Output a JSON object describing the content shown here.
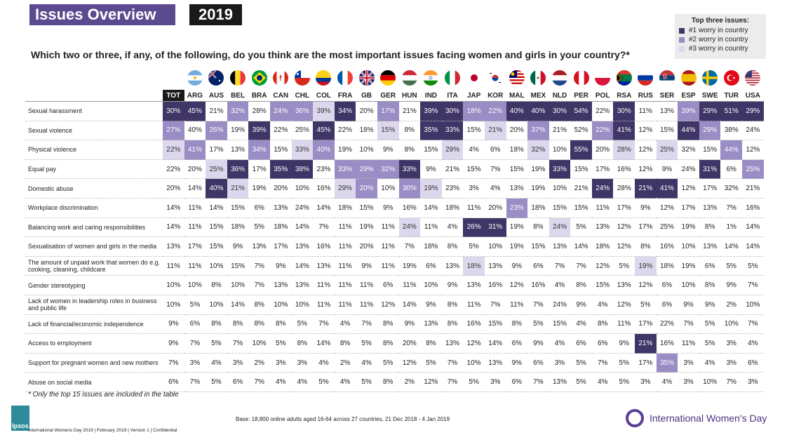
{
  "header": {
    "title": "Issues Overview",
    "year": "2019"
  },
  "legend": {
    "title": "Top three issues:",
    "items": [
      {
        "label": "#1 worry in country",
        "color": "#3f3566"
      },
      {
        "label": "#2 worry in country",
        "color": "#9a8cc4"
      },
      {
        "label": "#3 worry in country",
        "color": "#dcd7ec"
      }
    ]
  },
  "question": "Which two or three, if any, of the following, do you think are the most important issues facing women and girls in your country?*",
  "columns": [
    "TOT",
    "ARG",
    "AUS",
    "BEL",
    "BRA",
    "CAN",
    "CHL",
    "COL",
    "FRA",
    "GB",
    "GER",
    "HUN",
    "IND",
    "ITA",
    "JAP",
    "KOR",
    "MAL",
    "MEX",
    "NLD",
    "PER",
    "POL",
    "RSA",
    "RUS",
    "SER",
    "ESP",
    "SWE",
    "TUR",
    "USA"
  ],
  "rows": [
    {
      "label": "Sexual harassment",
      "values": [
        "30%",
        "45%",
        "21%",
        "32%",
        "28%",
        "24%",
        "36%",
        "39%",
        "34%",
        "20%",
        "17%",
        "21%",
        "39%",
        "30%",
        "18%",
        "22%",
        "40%",
        "40%",
        "30%",
        "54%",
        "22%",
        "30%",
        "11%",
        "13%",
        "39%",
        "29%",
        "51%",
        "29%"
      ],
      "ranks": [
        1,
        1,
        0,
        2,
        0,
        2,
        2,
        3,
        1,
        0,
        2,
        0,
        1,
        1,
        2,
        2,
        1,
        1,
        1,
        1,
        0,
        1,
        0,
        0,
        2,
        1,
        1,
        1
      ]
    },
    {
      "label": "Sexual violence",
      "values": [
        "27%",
        "40%",
        "26%",
        "19%",
        "39%",
        "22%",
        "25%",
        "45%",
        "22%",
        "18%",
        "15%",
        "8%",
        "35%",
        "33%",
        "15%",
        "21%",
        "20%",
        "37%",
        "21%",
        "52%",
        "22%",
        "41%",
        "12%",
        "15%",
        "44%",
        "29%",
        "38%",
        "24%"
      ],
      "ranks": [
        2,
        0,
        2,
        0,
        1,
        0,
        0,
        1,
        0,
        0,
        3,
        0,
        1,
        1,
        0,
        3,
        0,
        2,
        0,
        0,
        2,
        1,
        0,
        0,
        1,
        2,
        0,
        0
      ]
    },
    {
      "label": "Physical violence",
      "values": [
        "22%",
        "41%",
        "17%",
        "13%",
        "34%",
        "15%",
        "33%",
        "40%",
        "19%",
        "10%",
        "9%",
        "8%",
        "15%",
        "29%",
        "4%",
        "6%",
        "18%",
        "32%",
        "10%",
        "55%",
        "20%",
        "28%",
        "12%",
        "25%",
        "32%",
        "15%",
        "44%",
        "12%"
      ],
      "ranks": [
        3,
        2,
        0,
        0,
        2,
        0,
        3,
        2,
        0,
        0,
        0,
        0,
        0,
        3,
        0,
        0,
        0,
        3,
        0,
        1,
        0,
        3,
        0,
        3,
        0,
        0,
        2,
        0
      ]
    },
    {
      "label": "Equal pay",
      "values": [
        "22%",
        "20%",
        "25%",
        "36%",
        "17%",
        "35%",
        "38%",
        "23%",
        "33%",
        "29%",
        "32%",
        "33%",
        "9%",
        "21%",
        "15%",
        "7%",
        "15%",
        "19%",
        "33%",
        "15%",
        "17%",
        "16%",
        "12%",
        "9%",
        "24%",
        "31%",
        "6%",
        "25%"
      ],
      "ranks": [
        0,
        0,
        3,
        1,
        0,
        1,
        1,
        0,
        2,
        2,
        2,
        1,
        0,
        0,
        0,
        0,
        0,
        0,
        1,
        0,
        0,
        0,
        0,
        0,
        0,
        1,
        0,
        2
      ]
    },
    {
      "label": "Domestic abuse",
      "values": [
        "20%",
        "14%",
        "40%",
        "21%",
        "19%",
        "20%",
        "10%",
        "16%",
        "29%",
        "20%",
        "10%",
        "30%",
        "19%",
        "23%",
        "3%",
        "4%",
        "13%",
        "19%",
        "10%",
        "21%",
        "24%",
        "28%",
        "21%",
        "41%",
        "12%",
        "17%",
        "32%",
        "21%"
      ],
      "ranks": [
        0,
        0,
        1,
        3,
        0,
        0,
        0,
        0,
        3,
        2,
        0,
        2,
        3,
        0,
        0,
        0,
        0,
        0,
        0,
        0,
        1,
        0,
        1,
        1,
        0,
        0,
        0,
        0
      ]
    },
    {
      "label": "Workplace discrimination",
      "values": [
        "14%",
        "11%",
        "14%",
        "15%",
        "6%",
        "13%",
        "24%",
        "14%",
        "18%",
        "15%",
        "9%",
        "16%",
        "14%",
        "18%",
        "11%",
        "20%",
        "23%",
        "18%",
        "15%",
        "15%",
        "11%",
        "17%",
        "9%",
        "12%",
        "17%",
        "13%",
        "7%",
        "16%"
      ],
      "ranks": [
        0,
        0,
        0,
        0,
        0,
        0,
        0,
        0,
        0,
        0,
        0,
        0,
        0,
        0,
        0,
        0,
        2,
        0,
        0,
        0,
        0,
        0,
        0,
        0,
        0,
        0,
        0,
        0
      ]
    },
    {
      "label": "Balancing work and caring responsibilities",
      "values": [
        "14%",
        "11%",
        "15%",
        "18%",
        "5%",
        "18%",
        "14%",
        "7%",
        "11%",
        "19%",
        "11%",
        "24%",
        "11%",
        "4%",
        "26%",
        "31%",
        "19%",
        "8%",
        "24%",
        "5%",
        "13%",
        "12%",
        "17%",
        "25%",
        "19%",
        "8%",
        "1%",
        "14%"
      ],
      "ranks": [
        0,
        0,
        0,
        0,
        0,
        0,
        0,
        0,
        0,
        0,
        0,
        3,
        0,
        0,
        1,
        1,
        0,
        0,
        3,
        0,
        0,
        0,
        0,
        0,
        0,
        0,
        0,
        0
      ]
    },
    {
      "label": "Sexualisation of women and girls in the media",
      "values": [
        "13%",
        "17%",
        "15%",
        "9%",
        "13%",
        "17%",
        "13%",
        "16%",
        "11%",
        "20%",
        "11%",
        "7%",
        "18%",
        "8%",
        "5%",
        "10%",
        "19%",
        "15%",
        "13%",
        "14%",
        "18%",
        "12%",
        "8%",
        "16%",
        "10%",
        "13%",
        "14%",
        "14%"
      ],
      "ranks": [
        0,
        0,
        0,
        0,
        0,
        0,
        0,
        0,
        0,
        0,
        0,
        0,
        0,
        0,
        0,
        0,
        0,
        0,
        0,
        0,
        0,
        0,
        0,
        0,
        0,
        0,
        0,
        0
      ]
    },
    {
      "label": "The amount of unpaid work that women do e.g. cooking, cleaning, childcare",
      "values": [
        "11%",
        "11%",
        "10%",
        "15%",
        "7%",
        "9%",
        "14%",
        "13%",
        "11%",
        "9%",
        "11%",
        "19%",
        "6%",
        "13%",
        "18%",
        "13%",
        "9%",
        "6%",
        "7%",
        "7%",
        "12%",
        "5%",
        "19%",
        "18%",
        "19%",
        "6%",
        "5%",
        "5%"
      ],
      "ranks": [
        0,
        0,
        0,
        0,
        0,
        0,
        0,
        0,
        0,
        0,
        0,
        0,
        0,
        0,
        3,
        0,
        0,
        0,
        0,
        0,
        0,
        0,
        3,
        0,
        0,
        0,
        0,
        0
      ]
    },
    {
      "label": "Gender stereotyping",
      "values": [
        "10%",
        "10%",
        "8%",
        "10%",
        "7%",
        "13%",
        "13%",
        "11%",
        "11%",
        "11%",
        "6%",
        "11%",
        "10%",
        "9%",
        "13%",
        "16%",
        "12%",
        "16%",
        "4%",
        "8%",
        "15%",
        "13%",
        "12%",
        "6%",
        "10%",
        "8%",
        "9%",
        "7%"
      ],
      "ranks": [
        0,
        0,
        0,
        0,
        0,
        0,
        0,
        0,
        0,
        0,
        0,
        0,
        0,
        0,
        0,
        0,
        0,
        0,
        0,
        0,
        0,
        0,
        0,
        0,
        0,
        0,
        0,
        0
      ]
    },
    {
      "label": "Lack of women in leadership roles in business and public life",
      "values": [
        "10%",
        "5%",
        "10%",
        "14%",
        "8%",
        "10%",
        "10%",
        "11%",
        "11%",
        "11%",
        "12%",
        "14%",
        "9%",
        "8%",
        "11%",
        "7%",
        "11%",
        "7%",
        "24%",
        "9%",
        "4%",
        "12%",
        "5%",
        "6%",
        "9%",
        "9%",
        "2%",
        "10%"
      ],
      "ranks": [
        0,
        0,
        0,
        0,
        0,
        0,
        0,
        0,
        0,
        0,
        0,
        0,
        0,
        0,
        0,
        0,
        0,
        0,
        0,
        0,
        0,
        0,
        0,
        0,
        0,
        0,
        0,
        0
      ]
    },
    {
      "label": "Lack of financial/economic independence",
      "values": [
        "9%",
        "6%",
        "8%",
        "8%",
        "8%",
        "8%",
        "5%",
        "7%",
        "4%",
        "7%",
        "8%",
        "9%",
        "13%",
        "8%",
        "16%",
        "15%",
        "8%",
        "5%",
        "15%",
        "4%",
        "8%",
        "11%",
        "17%",
        "22%",
        "7%",
        "5%",
        "10%",
        "7%"
      ],
      "ranks": [
        0,
        0,
        0,
        0,
        0,
        0,
        0,
        0,
        0,
        0,
        0,
        0,
        0,
        0,
        0,
        0,
        0,
        0,
        0,
        0,
        0,
        0,
        0,
        0,
        0,
        0,
        0,
        0
      ]
    },
    {
      "label": "Access to employment",
      "values": [
        "9%",
        "7%",
        "5%",
        "7%",
        "10%",
        "5%",
        "8%",
        "14%",
        "8%",
        "5%",
        "8%",
        "20%",
        "8%",
        "13%",
        "12%",
        "14%",
        "6%",
        "9%",
        "4%",
        "6%",
        "6%",
        "9%",
        "21%",
        "16%",
        "11%",
        "5%",
        "3%",
        "4%"
      ],
      "ranks": [
        0,
        0,
        0,
        0,
        0,
        0,
        0,
        0,
        0,
        0,
        0,
        0,
        0,
        0,
        0,
        0,
        0,
        0,
        0,
        0,
        0,
        0,
        1,
        0,
        0,
        0,
        0,
        0
      ]
    },
    {
      "label": "Support for pregnant women and new mothers",
      "values": [
        "7%",
        "3%",
        "4%",
        "3%",
        "2%",
        "3%",
        "3%",
        "4%",
        "2%",
        "4%",
        "5%",
        "12%",
        "5%",
        "7%",
        "10%",
        "13%",
        "9%",
        "6%",
        "3%",
        "5%",
        "7%",
        "5%",
        "17%",
        "35%",
        "3%",
        "4%",
        "3%",
        "6%"
      ],
      "ranks": [
        0,
        0,
        0,
        0,
        0,
        0,
        0,
        0,
        0,
        0,
        0,
        0,
        0,
        0,
        0,
        0,
        0,
        0,
        0,
        0,
        0,
        0,
        0,
        2,
        0,
        0,
        0,
        0
      ]
    },
    {
      "label": "Abuse on social media",
      "values": [
        "6%",
        "7%",
        "5%",
        "6%",
        "7%",
        "4%",
        "4%",
        "5%",
        "4%",
        "5%",
        "8%",
        "2%",
        "12%",
        "7%",
        "5%",
        "3%",
        "6%",
        "7%",
        "13%",
        "5%",
        "4%",
        "5%",
        "3%",
        "4%",
        "3%",
        "10%",
        "7%",
        "3%"
      ],
      "ranks": [
        0,
        0,
        0,
        0,
        0,
        0,
        0,
        0,
        0,
        0,
        0,
        0,
        0,
        0,
        0,
        0,
        0,
        0,
        0,
        0,
        0,
        0,
        0,
        0,
        0,
        0,
        0,
        0
      ]
    }
  ],
  "footnote": "* Only the top 15 issues are included in the table",
  "base": "Base: 18,800 online adults aged 16-64 across 27 countries,  21 Dec 2018 - 4 Jan  2019",
  "footer": "International Womens Day 2019 | February 2019 | Version 1 | Confidential",
  "brand": {
    "ipsos": "Ipsos",
    "iwd": "International Women's Day"
  }
}
